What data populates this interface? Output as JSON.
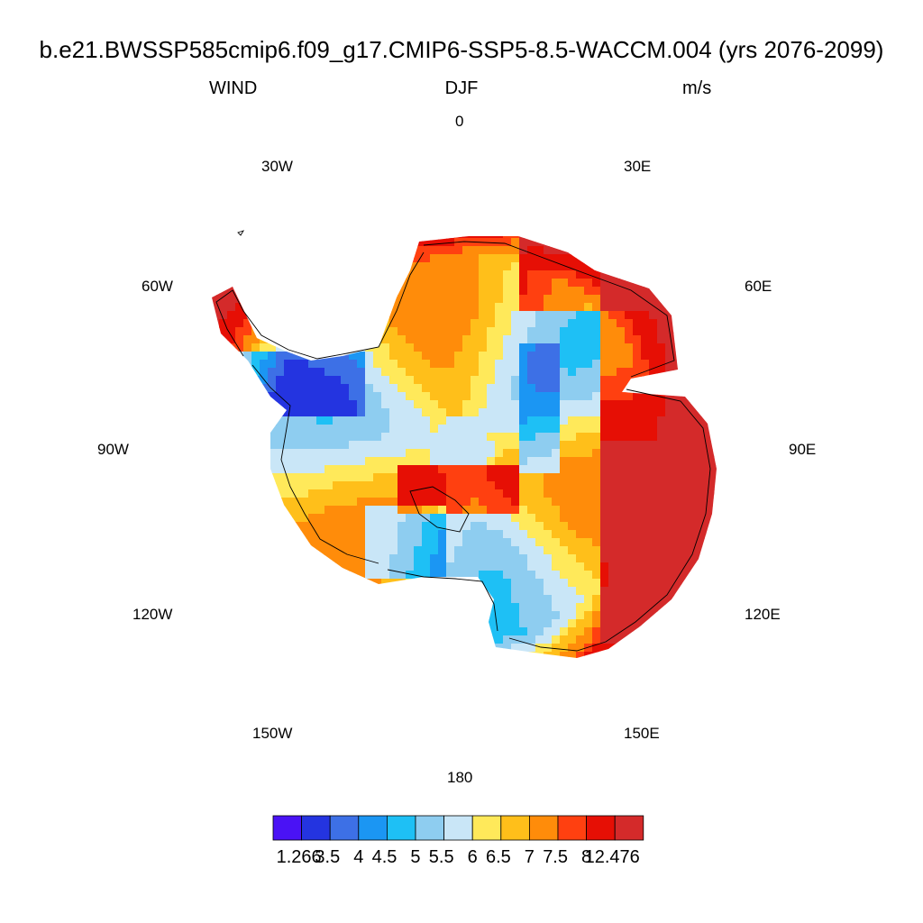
{
  "title": "b.e21.BWSSP585cmip6.f09_g17.CMIP6-SSP5-8.5-WACCM.004 (yrs 2076-2099)",
  "subtitle": {
    "left": "WIND",
    "center": "DJF",
    "right": "m/s"
  },
  "longitude_labels": [
    "0",
    "30E",
    "60E",
    "90E",
    "120E",
    "150E",
    "180",
    "150W",
    "120W",
    "90W",
    "60W",
    "30W"
  ],
  "colorbar": {
    "colors": [
      "#4a12f5",
      "#2434e0",
      "#3d70e6",
      "#1b96f3",
      "#1ec0f5",
      "#8ecdf0",
      "#c9e6f7",
      "#ffe95a",
      "#ffbf1a",
      "#ff8c0a",
      "#ff4010",
      "#e60f05",
      "#d42a2a"
    ],
    "labels": [
      "1.266",
      "3.5",
      "4",
      "4.5",
      "5",
      "5.5",
      "6",
      "6.5",
      "7",
      "7.5",
      "8",
      "12.476"
    ]
  }
}
